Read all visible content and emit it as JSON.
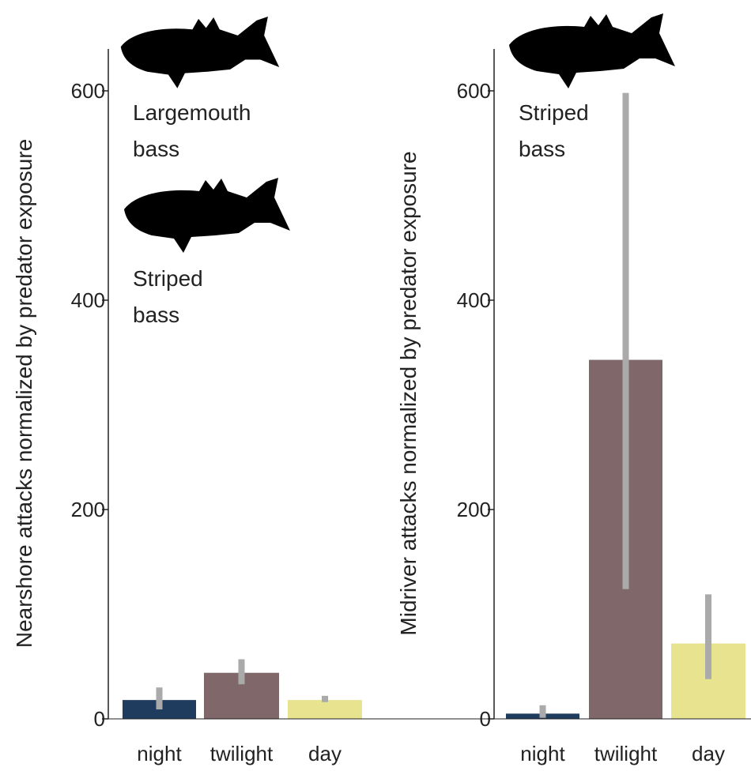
{
  "chart_data": [
    {
      "type": "bar",
      "y_label": "Nearshore attacks normalized by predator exposure",
      "categories": [
        "night",
        "twilight",
        "day"
      ],
      "values": [
        18,
        44,
        18
      ],
      "error_low": [
        9,
        33,
        16
      ],
      "error_high": [
        30,
        57,
        22
      ],
      "colors": [
        "#1f3b5e",
        "#806769",
        "#e7e38f"
      ],
      "error_color": "#aaaaaa",
      "ylim": [
        0,
        640
      ],
      "yticks": [
        0,
        200,
        400,
        600
      ],
      "annotations": [
        {
          "lines": [
            "Largemouth",
            "bass"
          ]
        },
        {
          "lines": [
            "Striped",
            "bass"
          ]
        }
      ]
    },
    {
      "type": "bar",
      "y_label": "Midriver attacks normalized by predator exposure",
      "categories": [
        "night",
        "twilight",
        "day"
      ],
      "values": [
        5,
        343,
        72
      ],
      "error_low": [
        1,
        124,
        38
      ],
      "error_high": [
        13,
        598,
        119
      ],
      "colors": [
        "#1f3b5e",
        "#806769",
        "#e7e38f"
      ],
      "error_color": "#aaaaaa",
      "ylim": [
        0,
        640
      ],
      "yticks": [
        0,
        200,
        400,
        600
      ],
      "annotations": [
        {
          "lines": [
            "Striped",
            "bass"
          ]
        }
      ]
    }
  ]
}
